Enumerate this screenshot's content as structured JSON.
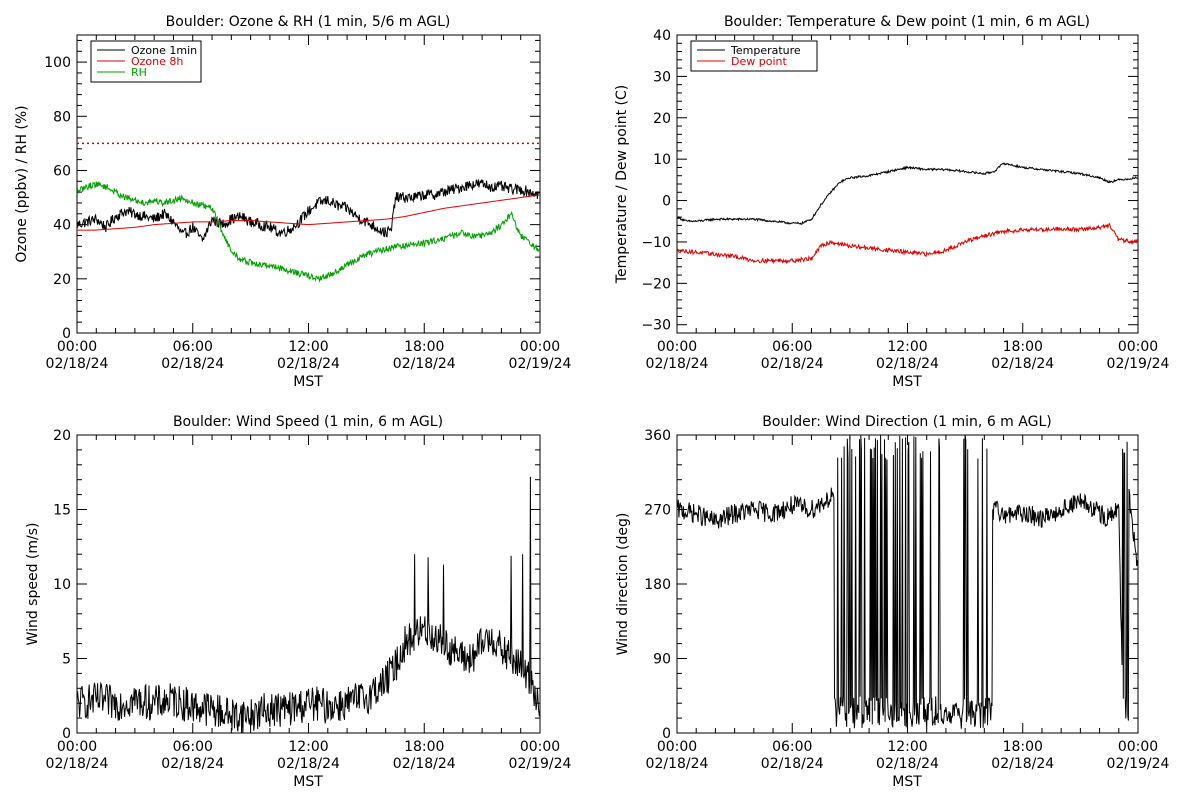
{
  "panels": [
    {
      "id": "ozone",
      "title": "Boulder: Ozone & RH (1 min, 5/6 m AGL)",
      "ylabel": "Ozone (ppbv) / RH (%)",
      "xlabel": "MST",
      "legend": [
        {
          "label": "Ozone 1min",
          "color": "#000000"
        },
        {
          "label": "Ozone 8h",
          "color": "#dd0000"
        },
        {
          "label": "RH",
          "color": "#00a000"
        }
      ]
    },
    {
      "id": "temperature",
      "title": "Boulder: Temperature & Dew point (1 min, 6 m AGL)",
      "ylabel": "Temperature / Dew point (C)",
      "xlabel": "MST",
      "legend": [
        {
          "label": "Temperature",
          "color": "#000000"
        },
        {
          "label": "Dew point",
          "color": "#dd0000"
        }
      ]
    },
    {
      "id": "windspeed",
      "title": "Boulder: Wind Speed (1 min, 6 m AGL)",
      "ylabel": "Wind speed (m/s)",
      "xlabel": "MST",
      "legend": []
    },
    {
      "id": "winddir",
      "title": "Boulder: Wind Direction (1 min, 6 m AGL)",
      "ylabel": "Wind direction (deg)",
      "xlabel": "MST",
      "legend": []
    }
  ],
  "chart_data": [
    {
      "type": "line",
      "title": "Boulder: Ozone & RH (1 min, 5/6 m AGL)",
      "xlabel": "MST",
      "ylabel": "Ozone (ppbv) / RH (%)",
      "xlim": [
        0,
        24
      ],
      "x_ticks": [
        0,
        6,
        12,
        18,
        24
      ],
      "x_tick_labels": [
        [
          "00:00",
          "02/18/24"
        ],
        [
          "06:00",
          "02/18/24"
        ],
        [
          "12:00",
          "02/18/24"
        ],
        [
          "18:00",
          "02/18/24"
        ],
        [
          "00:00",
          "02/19/24"
        ]
      ],
      "ylim": [
        0,
        110
      ],
      "y_ticks": [
        0,
        20,
        40,
        60,
        80,
        100
      ],
      "y_tick_labels": [
        "0",
        "20",
        "40",
        "60",
        "80",
        "100"
      ],
      "legend_position": "top-left",
      "reference_lines": [
        {
          "y": 70,
          "color": "#dd0000",
          "style": "dotted"
        }
      ],
      "series": [
        {
          "name": "Ozone 1min",
          "color": "#000000",
          "x": [
            0,
            0.5,
            1,
            1.5,
            2,
            2.5,
            3,
            3.5,
            4,
            4.5,
            5,
            5.5,
            6,
            6.5,
            7,
            7.5,
            8,
            8.5,
            9,
            9.5,
            10,
            10.5,
            11,
            11.5,
            12,
            12.5,
            13,
            13.5,
            14,
            14.5,
            15,
            15.5,
            16,
            16.3,
            16.5,
            17,
            17.5,
            18,
            18.5,
            19,
            19.5,
            20,
            20.5,
            21,
            21.5,
            22,
            22.5,
            23,
            23.5,
            24
          ],
          "y": [
            40,
            41,
            42,
            39,
            43,
            45,
            44,
            43,
            42,
            44,
            41,
            36,
            39,
            34,
            42,
            40,
            42,
            43,
            41,
            40,
            39,
            37,
            38,
            41,
            45,
            48,
            49,
            47,
            46,
            43,
            41,
            39,
            37,
            38,
            50,
            50,
            50,
            51,
            51,
            52,
            53,
            54,
            55,
            55,
            54,
            54,
            53,
            53,
            52,
            51
          ],
          "noise": 2.0
        },
        {
          "name": "Ozone 8h",
          "color": "#dd0000",
          "x": [
            0,
            1,
            2,
            3,
            4,
            5,
            6,
            7,
            8,
            9,
            10,
            11,
            12,
            13,
            14,
            15,
            16,
            17,
            18,
            19,
            20,
            21,
            22,
            23,
            24
          ],
          "y": [
            38,
            38,
            38.5,
            39,
            40,
            40.5,
            41,
            41,
            41.5,
            41.5,
            41,
            40.5,
            40,
            40.5,
            41,
            41.5,
            42,
            43,
            44.5,
            46,
            47,
            48,
            49,
            50,
            51
          ],
          "noise": 0
        },
        {
          "name": "RH",
          "color": "#00a000",
          "x": [
            0,
            0.5,
            1,
            1.5,
            2,
            2.5,
            3,
            3.5,
            4,
            4.5,
            5,
            5.5,
            6,
            6.5,
            7,
            7.5,
            8,
            8.5,
            9,
            9.5,
            10,
            10.5,
            11,
            11.5,
            12,
            12.5,
            13,
            13.5,
            14,
            14.5,
            15,
            15.5,
            16,
            16.5,
            17,
            17.5,
            18,
            18.5,
            19,
            19.5,
            20,
            20.5,
            21,
            21.5,
            22,
            22.5,
            23,
            23.5,
            24
          ],
          "y": [
            52,
            54,
            55,
            54,
            52,
            50,
            49,
            48,
            49,
            48,
            49,
            50,
            48,
            47,
            46,
            38,
            30,
            27,
            26,
            25,
            25,
            24,
            23,
            22,
            21,
            20,
            21,
            23,
            25,
            27,
            29,
            30,
            31,
            32,
            32,
            33,
            33,
            34,
            35,
            36,
            37,
            36,
            36,
            37,
            40,
            44,
            36,
            33,
            30
          ],
          "noise": 1.2
        }
      ]
    },
    {
      "type": "line",
      "title": "Boulder: Temperature & Dew point (1 min, 6 m AGL)",
      "xlabel": "MST",
      "ylabel": "Temperature / Dew point (C)",
      "xlim": [
        0,
        24
      ],
      "x_ticks": [
        0,
        6,
        12,
        18,
        24
      ],
      "x_tick_labels": [
        [
          "00:00",
          "02/18/24"
        ],
        [
          "06:00",
          "02/18/24"
        ],
        [
          "12:00",
          "02/18/24"
        ],
        [
          "18:00",
          "02/18/24"
        ],
        [
          "00:00",
          "02/19/24"
        ]
      ],
      "ylim": [
        -32,
        40
      ],
      "y_ticks": [
        -30,
        -20,
        -10,
        0,
        10,
        20,
        30,
        40
      ],
      "y_tick_labels": [
        "−30",
        "−20",
        "−10",
        "0",
        "10",
        "20",
        "30",
        "40"
      ],
      "legend_position": "top-left",
      "series": [
        {
          "name": "Temperature",
          "color": "#000000",
          "x": [
            0,
            0.5,
            1,
            2,
            3,
            4,
            5,
            6,
            6.5,
            7,
            7.5,
            8,
            8.5,
            9,
            10,
            11,
            12,
            13,
            14,
            15,
            16,
            16.5,
            17,
            18,
            19,
            20,
            21,
            22,
            22.5,
            23,
            24
          ],
          "y": [
            -4,
            -5,
            -5,
            -4.5,
            -4.5,
            -4.5,
            -5,
            -5.5,
            -5.5,
            -4.5,
            -1,
            2,
            4.5,
            5.5,
            6,
            7,
            8,
            7.5,
            7.5,
            7,
            6.5,
            7,
            9,
            8,
            7.5,
            7,
            6.5,
            5.5,
            4.5,
            5,
            5.5
          ],
          "noise": 0.25
        },
        {
          "name": "Dew point",
          "color": "#dd0000",
          "x": [
            0,
            1,
            2,
            3,
            4,
            5,
            6,
            7,
            7.5,
            8,
            9,
            10,
            11,
            12,
            13,
            14,
            15,
            16,
            17,
            18,
            19,
            20,
            21,
            22,
            22.5,
            23,
            24
          ],
          "y": [
            -12,
            -12.5,
            -13,
            -13.5,
            -14.5,
            -14.5,
            -14.5,
            -14,
            -11,
            -10,
            -11,
            -11.5,
            -12,
            -12.5,
            -13,
            -12,
            -10,
            -8.5,
            -7.5,
            -7,
            -7,
            -6.8,
            -7,
            -6.5,
            -6,
            -9.5,
            -10
          ],
          "noise": 0.5
        }
      ]
    },
    {
      "type": "line",
      "title": "Boulder: Wind Speed (1 min, 6 m AGL)",
      "xlabel": "MST",
      "ylabel": "Wind speed (m/s)",
      "xlim": [
        0,
        24
      ],
      "x_ticks": [
        0,
        6,
        12,
        18,
        24
      ],
      "x_tick_labels": [
        [
          "00:00",
          "02/18/24"
        ],
        [
          "06:00",
          "02/18/24"
        ],
        [
          "12:00",
          "02/18/24"
        ],
        [
          "18:00",
          "02/18/24"
        ],
        [
          "00:00",
          "02/19/24"
        ]
      ],
      "ylim": [
        0,
        20
      ],
      "y_ticks": [
        0,
        5,
        10,
        15,
        20
      ],
      "y_tick_labels": [
        "0",
        "5",
        "10",
        "15",
        "20"
      ],
      "series": [
        {
          "name": "",
          "color": "#000000",
          "x": [
            0,
            1,
            2,
            3,
            4,
            5,
            6,
            7,
            8,
            9,
            10,
            11,
            12,
            13,
            14,
            15,
            16,
            16.5,
            17,
            17.5,
            18,
            18.5,
            19,
            19.5,
            20,
            20.5,
            21,
            21.5,
            22,
            22.5,
            23,
            23.5,
            24
          ],
          "y": [
            2,
            2.2,
            2,
            2.2,
            2,
            2.2,
            1.8,
            1.6,
            1.2,
            1.2,
            1.6,
            1.6,
            2,
            1.8,
            2,
            2.4,
            3.5,
            4.5,
            6,
            6.5,
            7,
            6.5,
            6,
            5.5,
            5,
            5,
            6,
            6.5,
            5.5,
            5,
            4.5,
            3.5,
            2
          ],
          "noise": 1.2,
          "clamp_min": 0,
          "spikes": [
            [
              17.5,
              12
            ],
            [
              18.2,
              11.8
            ],
            [
              19,
              11.3
            ],
            [
              22.5,
              11.9
            ],
            [
              23.5,
              17.2
            ],
            [
              23.1,
              12
            ]
          ]
        }
      ]
    },
    {
      "type": "line",
      "title": "Boulder: Wind Direction (1 min, 6 m AGL)",
      "xlabel": "MST",
      "ylabel": "Wind direction (deg)",
      "xlim": [
        0,
        24
      ],
      "x_ticks": [
        0,
        6,
        12,
        18,
        24
      ],
      "x_tick_labels": [
        [
          "00:00",
          "02/18/24"
        ],
        [
          "06:00",
          "02/18/24"
        ],
        [
          "12:00",
          "02/18/24"
        ],
        [
          "18:00",
          "02/18/24"
        ],
        [
          "00:00",
          "02/19/24"
        ]
      ],
      "ylim": [
        0,
        360
      ],
      "y_ticks": [
        0,
        90,
        180,
        270,
        360
      ],
      "y_tick_labels": [
        "0",
        "90",
        "180",
        "270",
        "360"
      ],
      "series": [
        {
          "name": "",
          "color": "#000000",
          "x": [
            0,
            1,
            2,
            3,
            4,
            5,
            6,
            7,
            8,
            8.5,
            9,
            10,
            11,
            12,
            13,
            14,
            15,
            16,
            16.5,
            17,
            18,
            19,
            20,
            21,
            22,
            22.5,
            23,
            23.2,
            23.5,
            24
          ],
          "y": [
            270,
            265,
            255,
            265,
            270,
            265,
            275,
            270,
            285,
            300,
            30,
            20,
            15,
            25,
            20,
            20,
            30,
            200,
            270,
            265,
            265,
            260,
            270,
            280,
            265,
            260,
            270,
            40,
            290,
            200
          ],
          "noise": 12,
          "clamp_min": 0,
          "clamp_max": 360,
          "wrap_ranges": [
            [
              8.2,
              9.4
            ],
            [
              9.5,
              13.8
            ],
            [
              14.8,
              16.4
            ],
            [
              23.2,
              23.5
            ]
          ]
        }
      ]
    }
  ]
}
